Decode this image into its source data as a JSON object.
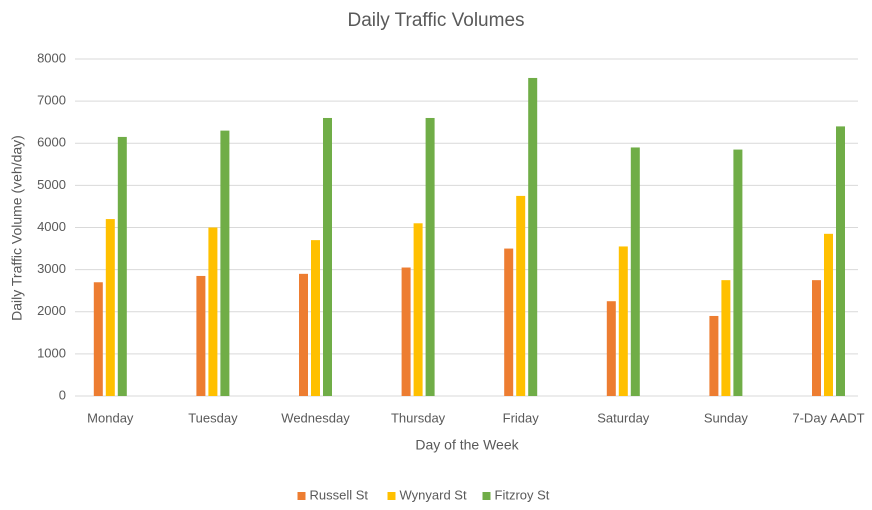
{
  "chart_data": {
    "type": "bar",
    "title": "Daily Traffic Volumes",
    "x_label": "Day of the Week",
    "y_label": "Daily Traffic Volume (veh/day)",
    "categories": [
      "Monday",
      "Tuesday",
      "Wednesday",
      "Thursday",
      "Friday",
      "Saturday",
      "Sunday",
      "7-Day AADT"
    ],
    "series": [
      {
        "name": "Russell St",
        "color": "#ed7d31",
        "values": [
          2700,
          2850,
          2900,
          3050,
          3500,
          2250,
          1900,
          2750
        ]
      },
      {
        "name": "Wynyard St",
        "color": "#ffc000",
        "values": [
          4200,
          4000,
          3700,
          4100,
          4750,
          3550,
          2750,
          3850
        ]
      },
      {
        "name": "Fitzroy St",
        "color": "#70ad47",
        "values": [
          6150,
          6300,
          6600,
          6600,
          7550,
          5900,
          5850,
          6400
        ]
      }
    ],
    "ylim": [
      0,
      8000
    ],
    "yticks": [
      0,
      1000,
      2000,
      3000,
      4000,
      5000,
      6000,
      7000,
      8000
    ],
    "grid": true,
    "legend": "bottom"
  }
}
